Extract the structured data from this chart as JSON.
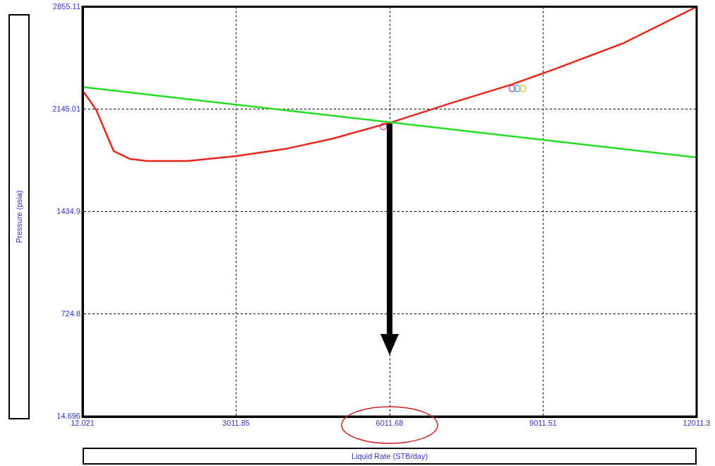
{
  "chart_data": {
    "type": "line",
    "xlabel": "Liquid Rate  (STB/day)",
    "ylabel": "Pressure  (psia)",
    "xlim": [
      12.021,
      12011.3
    ],
    "xticks": [
      12.021,
      3011.85,
      6011.68,
      9011.51,
      12011.3
    ],
    "ylim": [
      14.696,
      2855.11
    ],
    "yticks": [
      14.696,
      724.8,
      1434.9,
      2145.01,
      2855.11
    ],
    "grid": true,
    "legend": false,
    "marker": "none",
    "line_style": "solid",
    "series": [
      {
        "type": "line",
        "color": "#22dd22",
        "x": [
          12.021,
          12011.3
        ],
        "values": [
          2299,
          1811
        ]
      },
      {
        "type": "line",
        "color": "#e8261c",
        "x": [
          12.021,
          93,
          282,
          457,
          619,
          929,
          1266,
          2075,
          3018,
          3962,
          4905,
          6051,
          7197,
          8410,
          9219,
          10567,
          12011.3
        ],
        "values": [
          2274,
          2235,
          2138,
          1991,
          1855,
          1801,
          1786,
          1786,
          1820,
          1869,
          1942,
          2055,
          2186,
          2318,
          2421,
          2601,
          2855
        ]
      },
      {
        "type": "scatter",
        "marker": "circle",
        "x": [
          5890,
          8410,
          8504,
          8612
        ],
        "values": [
          2025,
          2289,
          2289,
          2289
        ],
        "colors": [
          "#cc44cc",
          "#cc44cc",
          "#33bbdd",
          "#eebb33"
        ]
      }
    ]
  }
}
